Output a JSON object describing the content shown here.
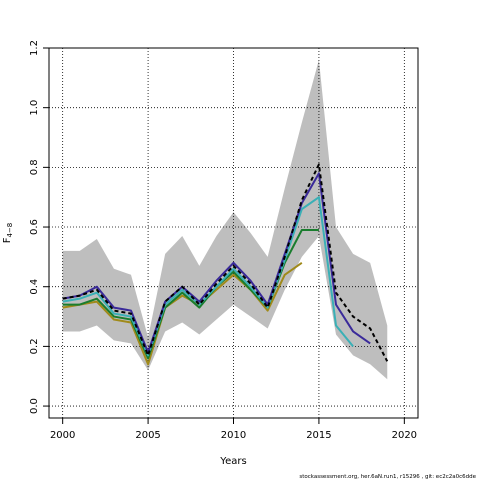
{
  "chart_data": {
    "type": "line",
    "xlabel": "Years",
    "ylabel": "F",
    "ylabel_sub": "4−8",
    "xlim": [
      1999.2,
      2020.8
    ],
    "ylim": [
      -0.04,
      1.2
    ],
    "xticks": [
      2000,
      2005,
      2010,
      2015,
      2020
    ],
    "yticks": [
      0.0,
      0.2,
      0.4,
      0.6,
      0.8,
      1.0,
      1.2
    ],
    "ytick_labels": [
      "0.0",
      "0.2",
      "0.4",
      "0.6",
      "0.8",
      "1.0",
      "1.2"
    ],
    "grid": true,
    "confidence_band": {
      "x": [
        2000,
        2001,
        2002,
        2003,
        2004,
        2005,
        2006,
        2007,
        2008,
        2009,
        2010,
        2011,
        2012,
        2013,
        2014,
        2015,
        2016,
        2017,
        2018,
        2019
      ],
      "lower": [
        0.25,
        0.25,
        0.27,
        0.22,
        0.21,
        0.12,
        0.25,
        0.28,
        0.24,
        0.29,
        0.34,
        0.3,
        0.26,
        0.39,
        0.5,
        0.57,
        0.24,
        0.17,
        0.14,
        0.09
      ],
      "upper": [
        0.52,
        0.52,
        0.56,
        0.46,
        0.44,
        0.23,
        0.51,
        0.57,
        0.47,
        0.57,
        0.65,
        0.58,
        0.5,
        0.73,
        0.95,
        1.16,
        0.6,
        0.51,
        0.48,
        0.27
      ],
      "color": "#bebebe"
    },
    "series": [
      {
        "color": "#a08a1a",
        "dash": false,
        "x": [
          2000,
          2001,
          2002,
          2003,
          2004,
          2005,
          2006,
          2007,
          2008,
          2009,
          2010,
          2011,
          2012,
          2013,
          2014
        ],
        "y": [
          0.33,
          0.34,
          0.35,
          0.29,
          0.28,
          0.14,
          0.33,
          0.37,
          0.34,
          0.39,
          0.44,
          0.39,
          0.32,
          0.44,
          0.48
        ]
      },
      {
        "color": "#1a7d2e",
        "dash": false,
        "x": [
          2000,
          2001,
          2002,
          2003,
          2004,
          2005,
          2006,
          2007,
          2008,
          2009,
          2010,
          2011,
          2012,
          2013,
          2014,
          2015
        ],
        "y": [
          0.34,
          0.34,
          0.36,
          0.3,
          0.29,
          0.16,
          0.33,
          0.38,
          0.33,
          0.4,
          0.45,
          0.39,
          0.33,
          0.48,
          0.59,
          0.59
        ]
      },
      {
        "color": "#3ab0b6",
        "dash": false,
        "x": [
          2000,
          2001,
          2002,
          2003,
          2004,
          2005,
          2006,
          2007,
          2008,
          2009,
          2010,
          2011,
          2012,
          2013,
          2014,
          2015,
          2016,
          2017
        ],
        "y": [
          0.35,
          0.36,
          0.38,
          0.31,
          0.3,
          0.17,
          0.34,
          0.39,
          0.34,
          0.4,
          0.46,
          0.4,
          0.33,
          0.49,
          0.66,
          0.7,
          0.27,
          0.2
        ]
      },
      {
        "color": "#3a2a9a",
        "dash": false,
        "x": [
          2000,
          2001,
          2002,
          2003,
          2004,
          2005,
          2006,
          2007,
          2008,
          2009,
          2010,
          2011,
          2012,
          2013,
          2014,
          2015,
          2016,
          2017,
          2018
        ],
        "y": [
          0.36,
          0.37,
          0.4,
          0.33,
          0.32,
          0.18,
          0.35,
          0.4,
          0.35,
          0.42,
          0.48,
          0.42,
          0.34,
          0.51,
          0.68,
          0.78,
          0.34,
          0.25,
          0.21
        ]
      },
      {
        "color": "#000000",
        "dash": true,
        "x": [
          2000,
          2001,
          2002,
          2003,
          2004,
          2005,
          2006,
          2007,
          2008,
          2009,
          2010,
          2011,
          2012,
          2013,
          2014,
          2015,
          2016,
          2017,
          2018,
          2019
        ],
        "y": [
          0.36,
          0.37,
          0.39,
          0.32,
          0.31,
          0.17,
          0.35,
          0.4,
          0.34,
          0.41,
          0.47,
          0.41,
          0.33,
          0.5,
          0.69,
          0.81,
          0.38,
          0.3,
          0.26,
          0.15
        ]
      }
    ],
    "footer": "stockassessment.org,  her.6aN.run1,  r15296 ,  git:  ec2c2a0c6dde"
  }
}
